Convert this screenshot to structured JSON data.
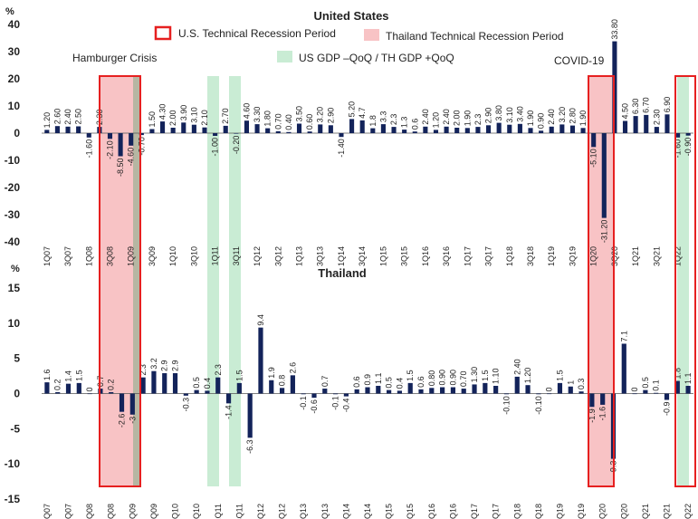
{
  "legend": {
    "us_recession": "U.S. Technical Recession Period",
    "th_recession": "Thailand Technical Recession Period",
    "gdp": "US GDP –QoQ / TH  GDP +QoQ"
  },
  "annotations": {
    "hamburger": "Hamburger Crisis",
    "covid": "COVID-19"
  },
  "colors": {
    "bar": "#13235a",
    "th_recession_fill": "#f8c3c5",
    "us_recession_border": "#e62020",
    "gdp_band": "#c9ecd4",
    "gray_band": "#b6b6a2"
  },
  "chart_data": [
    {
      "type": "bar",
      "title": "United States",
      "ylabel": "%",
      "ylim": [
        -40,
        40
      ],
      "yticks": [
        "40",
        "30",
        "20",
        "10",
        "0",
        "-10",
        "-20",
        "-30",
        "-40"
      ],
      "tick_labels": [
        "1Q07",
        "3Q07",
        "1Q08",
        "3Q08",
        "1Q09",
        "3Q09",
        "1Q10",
        "3Q10",
        "1Q11",
        "3Q11",
        "1Q12",
        "3Q12",
        "1Q13",
        "3Q13",
        "1Q14",
        "3Q14",
        "1Q15",
        "3Q15",
        "1Q16",
        "3Q16",
        "1Q17",
        "3Q17",
        "1Q18",
        "3Q18",
        "1Q19",
        "3Q19",
        "1Q20",
        "3Q20",
        "1Q21",
        "3Q21",
        "1Q22"
      ],
      "values": [
        1.2,
        2.6,
        2.4,
        2.5,
        -1.6,
        2.3,
        -2.1,
        -8.5,
        -4.6,
        -0.7,
        1.5,
        4.3,
        2.0,
        3.9,
        3.1,
        2.1,
        -1.0,
        2.7,
        -0.2,
        4.6,
        3.3,
        1.8,
        0.7,
        0.4,
        3.5,
        0.6,
        3.2,
        2.9,
        -1.4,
        5.2,
        4.7,
        1.8,
        3.3,
        2.3,
        1.3,
        0.6,
        2.4,
        1.2,
        2.4,
        2.0,
        1.9,
        2.3,
        2.9,
        3.8,
        3.1,
        3.4,
        1.9,
        0.9,
        2.4,
        3.2,
        2.8,
        1.9,
        -5.1,
        -31.2,
        33.8,
        4.5,
        6.3,
        6.7,
        2.3,
        6.9,
        -1.6,
        -0.9
      ],
      "labels": [
        "1.20",
        "2.60",
        "2.40",
        "2.50",
        "-1.60",
        "2.30",
        "-2.10",
        "-8.50",
        "-4.60",
        "-0.70",
        "1.50",
        "4.30",
        "2.00",
        "3.90",
        "3.10",
        "2.10",
        "-1.00",
        "2.70",
        "-0.20",
        "4.60",
        "3.30",
        "1.80",
        "0.70",
        "0.40",
        "3.50",
        "0.60",
        "3.20",
        "2.90",
        "-1.40",
        "5.20",
        "4.7",
        "1.8",
        "3.3",
        "2.3",
        "1.3",
        "0.6",
        "2.40",
        "1.20",
        "2.40",
        "2.00",
        "1.90",
        "2.3",
        "2.90",
        "3.80",
        "3.10",
        "3.40",
        "1.90",
        "0.90",
        "2.40",
        "3.20",
        "2.80",
        "1.90",
        "-5.10",
        "-31.20",
        "33.80",
        "4.50",
        "6.30",
        "6.70",
        "2.30",
        "6.90",
        "-1.60",
        "-0.90"
      ]
    },
    {
      "type": "bar",
      "title": "Thailand",
      "ylabel": "%",
      "ylim": [
        -15,
        15
      ],
      "yticks": [
        "15",
        "10",
        "5",
        "0",
        "-5",
        "-10",
        "-15"
      ],
      "tick_labels": [
        "1Q07",
        "3Q07",
        "1Q08",
        "3Q08",
        "1Q09",
        "3Q09",
        "1Q10",
        "3Q10",
        "1Q11",
        "3Q11",
        "1Q12",
        "3Q12",
        "1Q13",
        "3Q13",
        "1Q14",
        "3Q14",
        "1Q15",
        "3Q15",
        "1Q16",
        "3Q16",
        "1Q17",
        "3Q17",
        "1Q18",
        "3Q18",
        "1Q19",
        "3Q19",
        "1Q20",
        "3Q20",
        "1Q21",
        "3Q21",
        "1Q22"
      ],
      "values": [
        1.6,
        0.2,
        1.4,
        1.5,
        0,
        0.7,
        0.2,
        -2.6,
        -3,
        2.3,
        3.2,
        2.9,
        2.9,
        -0.3,
        0.5,
        0.4,
        2.3,
        -1.4,
        1.5,
        -6.3,
        9.4,
        1.9,
        0.8,
        2.6,
        -0.1,
        -0.6,
        0.7,
        -0.1,
        -0.4,
        0.6,
        0.9,
        1.1,
        0.5,
        0.4,
        1.5,
        0.6,
        0.8,
        0.9,
        0.9,
        0.7,
        1.3,
        1.5,
        1.1,
        -0.1,
        2.4,
        1.2,
        -0.1,
        0,
        1.5,
        1,
        0.3,
        -1.9,
        -1.6,
        -9.3,
        7.1,
        0,
        0.5,
        0.1,
        -0.9,
        1.8,
        1.1
      ],
      "labels": [
        "1.6",
        "0.2",
        "1.4",
        "1.5",
        "0",
        "0.7",
        "0.2",
        "-2.6",
        "-3",
        "2.3",
        "3.2",
        "2.9",
        "2.9",
        "-0.3",
        "0.5",
        "0.4",
        "2.3",
        "-1.4",
        "1.5",
        "-6.3",
        "9.4",
        "1.9",
        "0.8",
        "2.6",
        "-0.1",
        "-0.6",
        "0.7",
        "-0.1",
        "-0.4",
        "0.6",
        "0.9",
        "1.1",
        "0.5",
        "0.4",
        "1.5",
        "0.6",
        "0.80",
        "0.90",
        "0.90",
        "0.70",
        "1.30",
        "1.5",
        "1.10",
        "-0.10",
        "2.40",
        "1.20",
        "-0.10",
        "0",
        "1.5",
        "1",
        "0.3",
        "-1.9",
        "-1.6",
        "-9.3",
        "7.1",
        "0",
        "0.5",
        "0.1",
        "-0.9",
        "1.8",
        "1.1"
      ]
    }
  ]
}
